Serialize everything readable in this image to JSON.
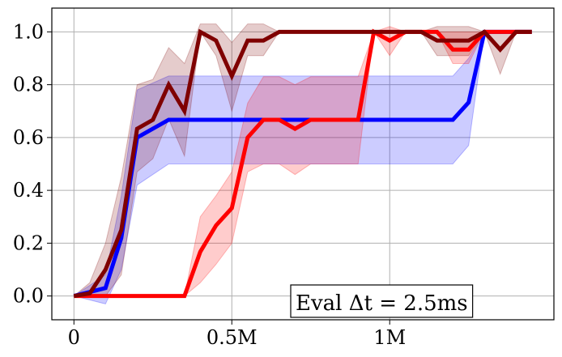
{
  "chart_data": {
    "type": "line",
    "title": "",
    "xlabel": "",
    "ylabel": "",
    "xlim": [
      -70000,
      1520000
    ],
    "ylim": [
      -0.09,
      1.09
    ],
    "grid": true,
    "x_ticks": [
      {
        "value": 0,
        "label": "0"
      },
      {
        "value": 500000,
        "label": "0.5M"
      },
      {
        "value": 1000000,
        "label": "1M"
      }
    ],
    "y_ticks": [
      {
        "value": 0.0,
        "label": "0.0"
      },
      {
        "value": 0.2,
        "label": "0.2"
      },
      {
        "value": 0.4,
        "label": "0.4"
      },
      {
        "value": 0.6,
        "label": "0.6"
      },
      {
        "value": 0.8,
        "label": "0.8"
      },
      {
        "value": 1.0,
        "label": "1.0"
      }
    ],
    "annotation": {
      "text": "Eval Δt = 2.5ms",
      "position": "bottom-center-right"
    },
    "series": [
      {
        "name": "blue",
        "color": "#0000ff",
        "x": [
          0,
          100000,
          150000,
          200000,
          300000,
          400000,
          500000,
          600000,
          700000,
          800000,
          900000,
          1000000,
          1100000,
          1200000,
          1250000,
          1300000,
          1350000,
          1400000,
          1450000
        ],
        "mean": [
          0,
          0.03,
          0.22,
          0.6,
          0.667,
          0.667,
          0.667,
          0.667,
          0.667,
          0.667,
          0.667,
          0.667,
          0.667,
          0.667,
          0.733,
          1.0,
          1.0,
          1.0,
          1.0
        ],
        "lower": [
          0,
          -0.03,
          0.1,
          0.42,
          0.5,
          0.5,
          0.5,
          0.5,
          0.5,
          0.5,
          0.5,
          0.5,
          0.5,
          0.5,
          0.57,
          1.0,
          1.0,
          1.0,
          1.0
        ],
        "upper": [
          0,
          0.08,
          0.38,
          0.78,
          0.833,
          0.833,
          0.833,
          0.833,
          0.833,
          0.833,
          0.833,
          0.833,
          0.833,
          0.833,
          0.9,
          1.0,
          1.0,
          1.0,
          1.0
        ]
      },
      {
        "name": "red",
        "color": "#ff0000",
        "x": [
          0,
          50000,
          100000,
          150000,
          200000,
          250000,
          300000,
          350000,
          400000,
          450000,
          500000,
          550000,
          600000,
          650000,
          700000,
          750000,
          800000,
          850000,
          900000,
          950000,
          1000000,
          1050000,
          1100000,
          1150000,
          1200000,
          1250000,
          1300000,
          1350000,
          1400000,
          1450000
        ],
        "mean": [
          0,
          0,
          0,
          0,
          0,
          0,
          0,
          0,
          0.167,
          0.267,
          0.333,
          0.6,
          0.667,
          0.667,
          0.633,
          0.667,
          0.667,
          0.667,
          0.667,
          1.0,
          0.967,
          1.0,
          1.0,
          1.0,
          0.933,
          0.933,
          1.0,
          1.0,
          1.0,
          1.0
        ],
        "lower": [
          0,
          0,
          0,
          0,
          0,
          0,
          0,
          0,
          0.05,
          0.12,
          0.2,
          0.47,
          0.5,
          0.5,
          0.46,
          0.5,
          0.5,
          0.5,
          0.5,
          1.0,
          0.91,
          1.0,
          1.0,
          1.0,
          0.88,
          0.88,
          1.0,
          1.0,
          1.0,
          1.0
        ],
        "upper": [
          0,
          0,
          0,
          0,
          0,
          0,
          0,
          0,
          0.3,
          0.38,
          0.47,
          0.73,
          0.83,
          0.83,
          0.8,
          0.83,
          0.83,
          0.83,
          0.83,
          1.0,
          1.02,
          1.0,
          1.0,
          1.0,
          1.0,
          1.0,
          1.0,
          1.0,
          1.0,
          1.0
        ]
      },
      {
        "name": "dark red",
        "color": "#7f0000",
        "x": [
          0,
          50000,
          100000,
          150000,
          200000,
          250000,
          300000,
          350000,
          400000,
          450000,
          500000,
          550000,
          600000,
          650000,
          700000,
          750000,
          800000,
          850000,
          900000,
          950000,
          1000000,
          1050000,
          1100000,
          1150000,
          1200000,
          1250000,
          1300000,
          1350000,
          1400000,
          1450000
        ],
        "mean": [
          0,
          0.01,
          0.1,
          0.25,
          0.633,
          0.667,
          0.8,
          0.7,
          1.0,
          0.967,
          0.833,
          0.967,
          0.967,
          1.0,
          1.0,
          1.0,
          1.0,
          1.0,
          1.0,
          1.0,
          1.0,
          1.0,
          1.0,
          0.967,
          0.967,
          0.967,
          1.0,
          0.933,
          1.0,
          1.0
        ],
        "lower": [
          0,
          0,
          0,
          0.08,
          0.47,
          0.52,
          0.67,
          0.53,
          1.0,
          0.91,
          0.7,
          0.91,
          0.91,
          1.0,
          1.0,
          1.0,
          1.0,
          1.0,
          1.0,
          1.0,
          1.0,
          1.0,
          1.0,
          0.91,
          0.91,
          0.91,
          1.0,
          0.84,
          1.0,
          1.0
        ],
        "upper": [
          0,
          0.05,
          0.2,
          0.45,
          0.8,
          0.82,
          0.94,
          0.88,
          1.03,
          1.03,
          0.96,
          1.03,
          1.03,
          1.0,
          1.0,
          1.0,
          1.0,
          1.0,
          1.0,
          1.0,
          1.0,
          1.0,
          1.0,
          1.02,
          1.02,
          1.02,
          1.0,
          1.0,
          1.0,
          1.0
        ]
      }
    ]
  }
}
